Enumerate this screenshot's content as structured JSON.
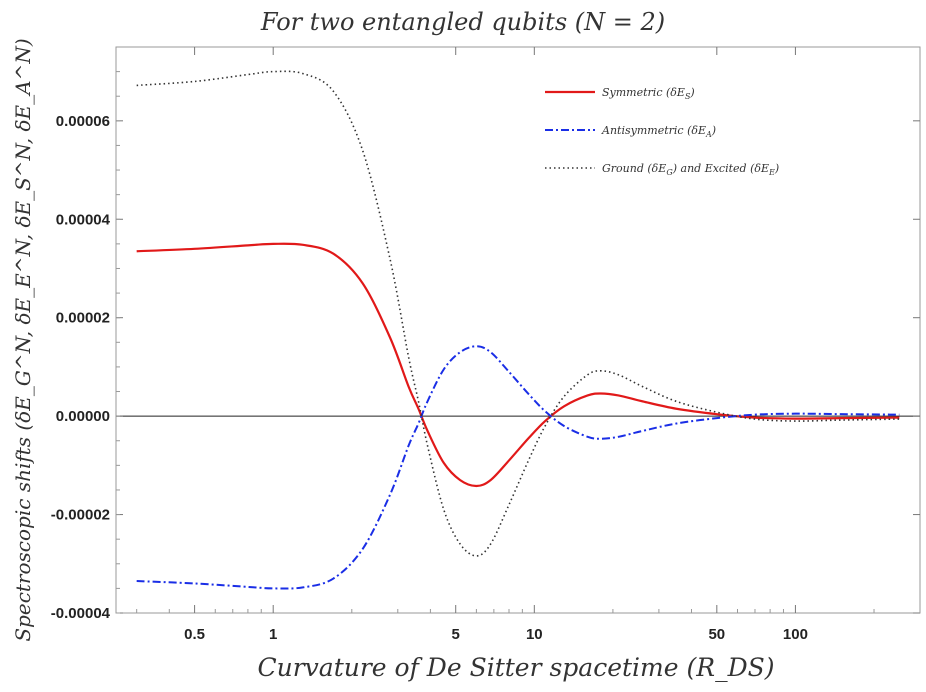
{
  "chart_data": {
    "type": "line",
    "title": "For two entangled qubits (N = 2)",
    "xlabel": "Curvature of De Sitter spacetime (R_DS)",
    "ylabel": "Spectroscopic shifts (δE_G^N, δE_E^N, δE_S^N, δE_A^N)",
    "x_scale": "log",
    "xlim": [
      0.25,
      300
    ],
    "ylim": [
      -4e-05,
      7.5e-05
    ],
    "x_ticks": [
      0.5,
      1,
      5,
      10,
      50,
      100
    ],
    "x_tick_labels": [
      "0.5",
      "1",
      "5",
      "10",
      "50",
      "100"
    ],
    "y_ticks": [
      -4e-05,
      -2e-05,
      0,
      2e-05,
      4e-05,
      6e-05
    ],
    "y_tick_labels": [
      "-0.00004",
      "-0.00002",
      "0.00000",
      "0.00002",
      "0.00004",
      "0.00006"
    ],
    "legend_position": "top-right",
    "series": [
      {
        "name": "Symmetric (δE_S^N)",
        "legend_main": "Symmetric ",
        "legend_sub": "S",
        "color": "#e11919",
        "style": "solid",
        "x": [
          0.3,
          0.5,
          0.8,
          1.0,
          1.3,
          1.7,
          2.2,
          2.8,
          3.3,
          3.6,
          3.9,
          4.5,
          5.2,
          6.0,
          6.8,
          8.0,
          9.5,
          11.0,
          13.0,
          16.0,
          18.0,
          21.0,
          26.0,
          35.0,
          50.0,
          70.0,
          100.0,
          150.0,
          250.0
        ],
        "y": [
          3.35e-05,
          3.4e-05,
          3.47e-05,
          3.5e-05,
          3.48e-05,
          3.3e-05,
          2.7e-05,
          1.6e-05,
          6e-06,
          1.5e-06,
          -3e-06,
          -9.5e-06,
          -1.3e-05,
          -1.42e-05,
          -1.3e-05,
          -9e-06,
          -4.5e-06,
          -1e-06,
          2e-06,
          4.2e-06,
          4.6e-06,
          4.2e-06,
          3e-06,
          1.5e-06,
          4e-07,
          -3e-07,
          -5e-07,
          -4e-07,
          -3e-07
        ]
      },
      {
        "name": "Antisymmetric (δE_A^N)",
        "legend_main": "Antisymmetric ",
        "legend_sub": "A",
        "color": "#1a2ee6",
        "style": "dashdot",
        "x": [
          0.3,
          0.5,
          0.8,
          1.0,
          1.3,
          1.7,
          2.2,
          2.8,
          3.3,
          3.6,
          3.9,
          4.5,
          5.2,
          6.0,
          6.8,
          8.0,
          9.5,
          11.0,
          13.0,
          16.0,
          18.0,
          21.0,
          26.0,
          35.0,
          50.0,
          70.0,
          100.0,
          150.0,
          250.0
        ],
        "y": [
          -3.35e-05,
          -3.4e-05,
          -3.47e-05,
          -3.5e-05,
          -3.48e-05,
          -3.3e-05,
          -2.7e-05,
          -1.6e-05,
          -6e-06,
          -1.5e-06,
          3e-06,
          9.5e-06,
          1.3e-05,
          1.42e-05,
          1.3e-05,
          9e-06,
          4.5e-06,
          1e-06,
          -2e-06,
          -4.2e-06,
          -4.6e-06,
          -4.2e-06,
          -3e-06,
          -1.5e-06,
          -4e-07,
          3e-07,
          5e-07,
          4e-07,
          3e-07
        ]
      },
      {
        "name": "Ground (δE_G^N) and Excited (δE_E^N)",
        "legend_main": "Ground ",
        "legend_sub": "G",
        "legend_mid": " and Excited ",
        "legend_sub2": "E",
        "color": "#333333",
        "style": "dotted",
        "x": [
          0.3,
          0.5,
          0.8,
          1.0,
          1.3,
          1.7,
          2.2,
          2.8,
          3.3,
          3.6,
          3.9,
          4.5,
          5.2,
          6.0,
          6.8,
          8.0,
          9.5,
          11.0,
          13.0,
          16.0,
          18.0,
          21.0,
          26.0,
          35.0,
          50.0,
          70.0,
          100.0,
          150.0,
          250.0
        ],
        "y": [
          6.72e-05,
          6.8e-05,
          6.94e-05,
          7e-05,
          6.96e-05,
          6.6e-05,
          5.4e-05,
          3.2e-05,
          1.2e-05,
          3e-06,
          -6e-06,
          -1.9e-05,
          -2.6e-05,
          -2.84e-05,
          -2.6e-05,
          -1.8e-05,
          -9e-06,
          -2e-06,
          4e-06,
          8.4e-06,
          9.2e-06,
          8.4e-06,
          6e-06,
          3e-06,
          8e-07,
          -6e-07,
          -1e-06,
          -8e-07,
          -6e-07
        ]
      }
    ]
  }
}
